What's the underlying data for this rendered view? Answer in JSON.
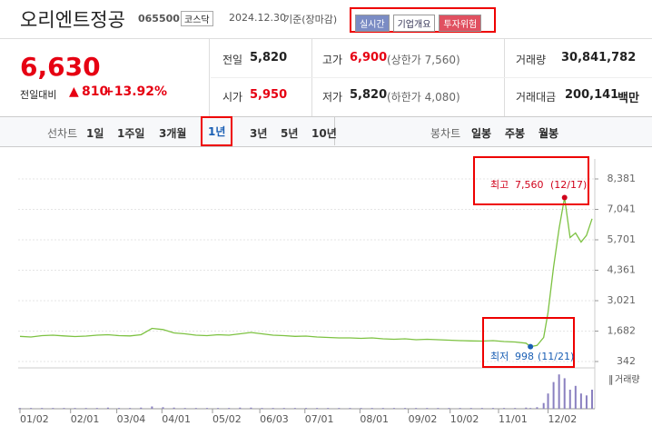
{
  "header": {
    "name": "오리엔트정공",
    "code": "065500",
    "market": "코스닥",
    "date": "2024.12.30",
    "basis": "기준(장마감)",
    "buttons": [
      "실시간",
      "기업개요",
      "투자위험"
    ]
  },
  "price": {
    "current": "6,630",
    "change_label": "전일대비",
    "change": "810",
    "change_rate": "+13.92%"
  },
  "stats": [
    [
      {
        "label": "전일",
        "value": "5,820"
      },
      {
        "label": "고가",
        "value": "6,900",
        "note": "(상한가 7,560)"
      },
      {
        "label": "거래량",
        "value": "30,841,782"
      }
    ],
    [
      {
        "label": "시가",
        "value": "5,950"
      },
      {
        "label": "저가",
        "value": "5,820",
        "note": "(하한가 4,080)"
      },
      {
        "label": "거래대금",
        "value": "200,141",
        "unit": "백만"
      }
    ]
  ],
  "tabs": {
    "line_label": "선차트",
    "periods": [
      "1일",
      "1주일",
      "3개월",
      "1년",
      "3년",
      "5년",
      "10년"
    ],
    "selected": "1년",
    "candle_label": "봉차트",
    "candles": [
      "일봉",
      "주봉",
      "월봉"
    ]
  },
  "chart_data": {
    "type": "line",
    "color": "#7dc242",
    "x": [
      0,
      1,
      2,
      3,
      4,
      5,
      6,
      7,
      8,
      9,
      10,
      11,
      12,
      13,
      14,
      15,
      16,
      17,
      18,
      19,
      20,
      21,
      22,
      23,
      24,
      25,
      26,
      27,
      28,
      29,
      30,
      31,
      32,
      33,
      34,
      35,
      36,
      37,
      38,
      39,
      40,
      41,
      42,
      43,
      44,
      45,
      46,
      46.4,
      47,
      47.6,
      48,
      48.5,
      49,
      49.5,
      50,
      50.5,
      51,
      51.5,
      52
    ],
    "values": [
      1450,
      1420,
      1480,
      1500,
      1470,
      1440,
      1460,
      1500,
      1520,
      1480,
      1470,
      1520,
      1800,
      1750,
      1600,
      1560,
      1500,
      1480,
      1520,
      1500,
      1560,
      1620,
      1560,
      1500,
      1480,
      1450,
      1460,
      1420,
      1400,
      1380,
      1380,
      1360,
      1380,
      1340,
      1320,
      1340,
      1300,
      1320,
      1300,
      1280,
      1260,
      1250,
      1240,
      1260,
      1220,
      1200,
      1150,
      998,
      1050,
      1400,
      2500,
      4500,
      6200,
      7560,
      5800,
      6000,
      5600,
      5900,
      6630
    ],
    "xlim": [
      0,
      52
    ],
    "xticks": [
      {
        "value": 0,
        "label": "01/02"
      },
      {
        "value": 4.6,
        "label": "02/01"
      },
      {
        "value": 8.8,
        "label": "03/04"
      },
      {
        "value": 12.9,
        "label": "04/01"
      },
      {
        "value": 17.5,
        "label": "05/02"
      },
      {
        "value": 21.8,
        "label": "06/03"
      },
      {
        "value": 25.9,
        "label": "07/01"
      },
      {
        "value": 30.9,
        "label": "08/01"
      },
      {
        "value": 35.3,
        "label": "09/02"
      },
      {
        "value": 39.1,
        "label": "10/02"
      },
      {
        "value": 43.5,
        "label": "11/01"
      },
      {
        "value": 48,
        "label": "12/02"
      }
    ],
    "ylim": [
      342,
      8381
    ],
    "yticks": [
      {
        "value": 8381,
        "label": "8,381"
      },
      {
        "value": 7041,
        "label": "7,041"
      },
      {
        "value": 5701,
        "label": "5,701"
      },
      {
        "value": 4361,
        "label": "4,361"
      },
      {
        "value": 3021,
        "label": "3,021"
      },
      {
        "value": 1682,
        "label": "1,682"
      },
      342
    ],
    "grid": true,
    "annotations": [
      {
        "label": "최고",
        "value": 7560,
        "value_label": "7,560",
        "date": "(12/17)",
        "color": "#d0021b"
      },
      {
        "label": "최저",
        "value": 998,
        "value_label": "998",
        "date": "(11/21)",
        "color": "#1a5fb4"
      }
    ],
    "volume": {
      "name": "거래량",
      "color": "#8a80c0",
      "ylim": [
        0,
        100
      ],
      "values": [
        2,
        2,
        2,
        2,
        2,
        2,
        2,
        2,
        3,
        2,
        2,
        3,
        6,
        4,
        3,
        2,
        2,
        2,
        2,
        2,
        3,
        3,
        2,
        2,
        2,
        2,
        2,
        2,
        2,
        2,
        2,
        2,
        2,
        2,
        2,
        2,
        2,
        2,
        2,
        2,
        2,
        2,
        2,
        2,
        2,
        2,
        3,
        2,
        4,
        15,
        40,
        70,
        90,
        80,
        50,
        60,
        40,
        35,
        50
      ]
    }
  }
}
